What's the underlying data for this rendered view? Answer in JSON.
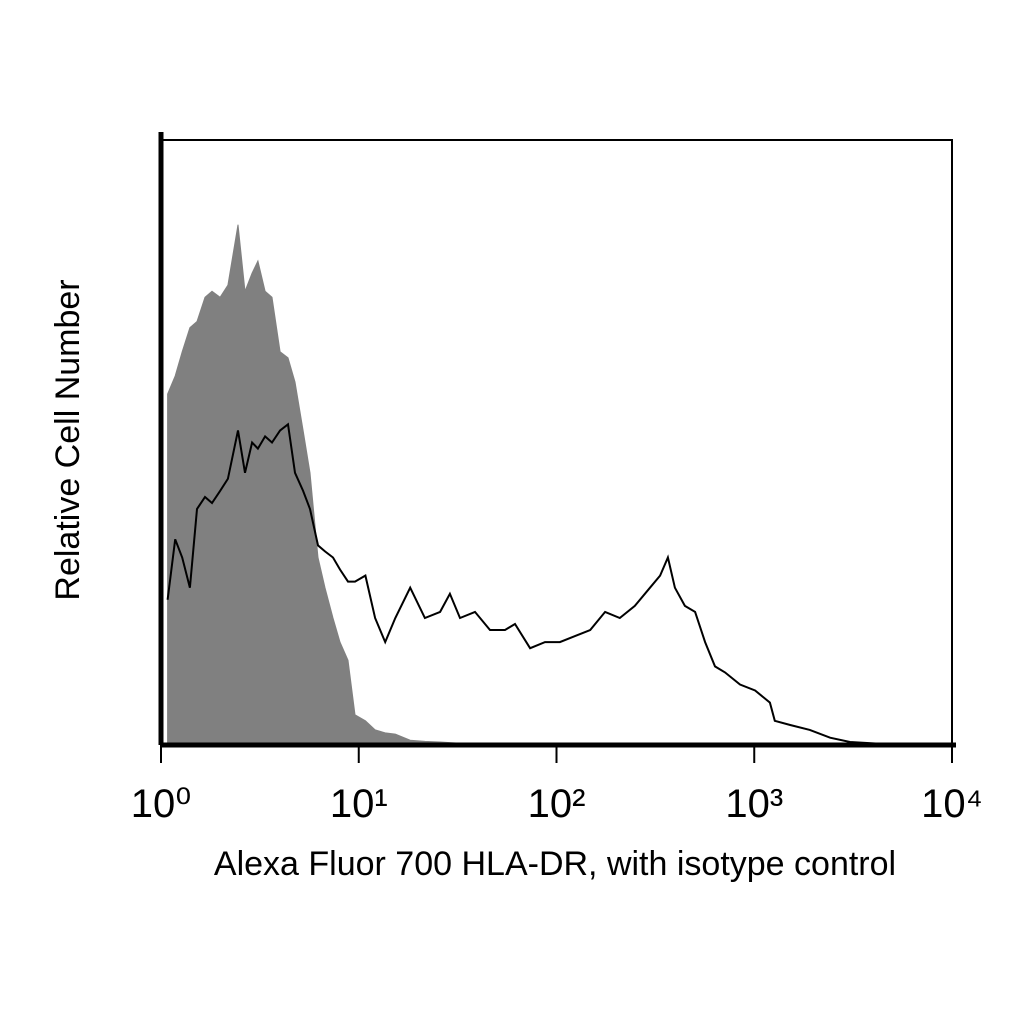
{
  "chart_data": {
    "type": "line",
    "x_label": "Alexa Fluor 700 HLA-DR, with isotype control",
    "y_label": "Relative Cell Number",
    "x_scale": "log",
    "xlim": [
      1,
      10000
    ],
    "xticks": [
      {
        "value": 1,
        "label": "10⁰"
      },
      {
        "value": 10,
        "label": "10¹"
      },
      {
        "value": 100,
        "label": "10²"
      },
      {
        "value": 1000,
        "label": "10³"
      },
      {
        "value": 10000,
        "label": "10⁴"
      }
    ],
    "ylim": [
      0,
      100
    ],
    "x": [
      1.08,
      1.18,
      1.28,
      1.4,
      1.52,
      1.67,
      1.81,
      1.99,
      2.18,
      2.45,
      2.66,
      2.89,
      3.09,
      3.36,
      3.64,
      4.0,
      4.39,
      4.76,
      5.23,
      5.67,
      6.22,
      6.75,
      7.41,
      8.04,
      8.82,
      9.57,
      10.8,
      12.1,
      13.6,
      15.3,
      18.2,
      21.6,
      25.8,
      28.9,
      32.5,
      38.7,
      46.1,
      54.9,
      61.7,
      73.5,
      87.5,
      104,
      124,
      148,
      176,
      209,
      249,
      297,
      334,
      366,
      397,
      446,
      502,
      564,
      633,
      711,
      847,
      1010,
      1200,
      1270,
      1520,
      1910,
      2420,
      3050,
      4320,
      9770
    ],
    "series": [
      {
        "color": "#808080",
        "area": true,
        "values": [
          58,
          61,
          65,
          69,
          70,
          74,
          75,
          74,
          76,
          86,
          75,
          78,
          80,
          75,
          74,
          65,
          64,
          60,
          52,
          45,
          31,
          26,
          21,
          17,
          14,
          5,
          4,
          2.5,
          2,
          1.8,
          0.8,
          0.6,
          0.5,
          0.4,
          0.3,
          0.2,
          0,
          0,
          0,
          0,
          0,
          0,
          0,
          0,
          0,
          0,
          0,
          0,
          0,
          0,
          0,
          0,
          0,
          0,
          0,
          0,
          0,
          0,
          0,
          0,
          0,
          0,
          0,
          0,
          0,
          0
        ]
      },
      {
        "color": "#000000",
        "area": false,
        "values": [
          24,
          34,
          31,
          26,
          39,
          41,
          40,
          42,
          44,
          52,
          45,
          50,
          49,
          51,
          50,
          52,
          53,
          45,
          42,
          39,
          33,
          32,
          31,
          29,
          27,
          27,
          28,
          21,
          17,
          21,
          26,
          21,
          22,
          25,
          21,
          22,
          19,
          19,
          20,
          16,
          17,
          17,
          18,
          19,
          22,
          21,
          23,
          26,
          28,
          31,
          26,
          23,
          22,
          17,
          13,
          12,
          10,
          9,
          7,
          4,
          3.3,
          2.5,
          1.2,
          0.5,
          0.2,
          0
        ]
      }
    ]
  }
}
